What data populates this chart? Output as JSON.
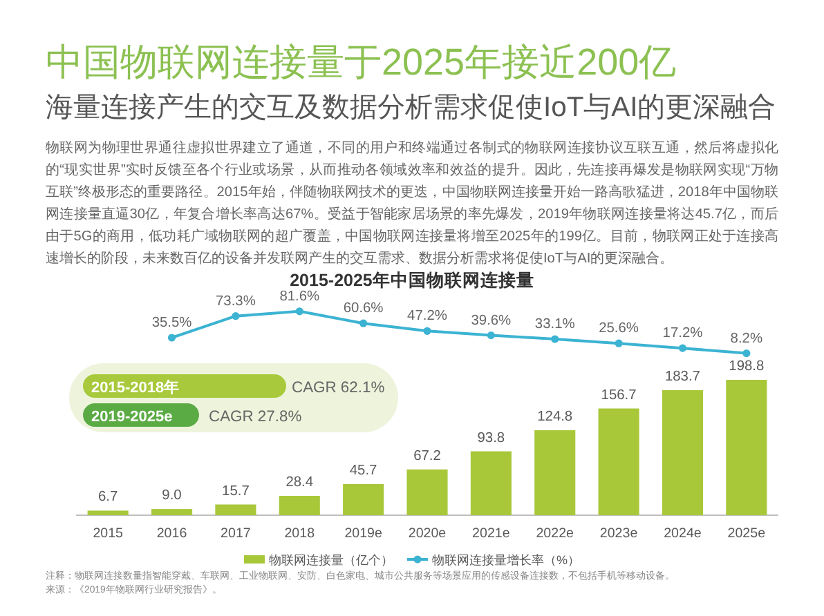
{
  "chart_data": [
    {
      "type": "line",
      "title": "中国物联网连接量于2025年接近200亿",
      "subtitle": "海量连接产生的交互及数据分析需求促使IoT与AI的更深融合",
      "categories": [
        null,
        null,
        null,
        null,
        null,
        null,
        null,
        null,
        null,
        null,
        null
      ],
      "series": [
        {
          "name": "物联网连接量增长率（%）",
          "color": "#3cb3d2",
          "values": [
            null,
            35.5,
            73.3,
            81.6,
            60.6,
            47.2,
            39.6,
            33.1,
            25.6,
            17.2,
            8.2
          ],
          "value_labels": [
            null,
            "35.5%",
            "73.3%",
            "81.6%",
            "60.6%",
            "47.2%",
            "39.6%",
            "33.1%",
            "25.6%",
            "17.2%",
            "8.2%"
          ]
        }
      ],
      "tick_labels": false,
      "legend": "bottom",
      "marker": "circle",
      "annotations": [
        "物联网为物理世界通往虚拟世界建立了通道，不同的用户和终端通过各制式的物联网连接协议互联互通，然后将虚拟化的“现实世界”实时反馈至各个行业或场景，从而推动各领域效率和效益的提升。因此，先连接再爆发是物联网实现“万物互联”终极形态的重要路径。2015年始，伴随物联网技术的更迭，中国物联网连接量开始一路高歌猛进，2018年中国物联网连接量直逼30亿，年复合增长率高达67%。受益于智能家居场景的率先爆发，2019年物联网连接量将达45.7亿，而后由于5G的商用，低功耗广域物联网的超广覆盖，中国物联网连接量将增至2025年的199亿。目前，物联网正处于连接高速增长的阶段，未来数百亿的设备并发联网产生的交互需求、数据分析需求将促使IoT与AI的更深融合。",
        "2015-2025年中国物联网连接量"
      ]
    },
    {
      "type": "bar",
      "categories": [
        "2015",
        "2016",
        "2017",
        "2018",
        "2019e",
        "2020e",
        "2021e",
        "2022e",
        "2023e",
        "2024e",
        "2025e"
      ],
      "series": [
        {
          "name": "物联网连接量（亿个）",
          "color": "#a8c83a",
          "values": [
            6.7,
            9.0,
            15.7,
            28.4,
            45.7,
            67.2,
            93.8,
            124.8,
            156.7,
            183.7,
            198.8
          ],
          "value_labels": [
            "6.7",
            "9.0",
            "15.7",
            "28.4",
            "45.7",
            "67.2",
            "93.8",
            "124.8",
            "156.7",
            "183.7",
            "198.8"
          ]
        }
      ],
      "tick_labels": "x",
      "legend": "bottom",
      "annotations": [
        "2015-2018年",
        "CAGR 62.1%",
        "2019-2025e",
        "CAGR 27.8%",
        "注释：物联网连接数量指智能穿戴、车联网、工业物联网、安防、白色家电、城市公共服务等场景应用的传感设备连接数，不包括手机等移动设备。",
        "来源：《2019年物联网行业研究报告》。"
      ]
    }
  ]
}
